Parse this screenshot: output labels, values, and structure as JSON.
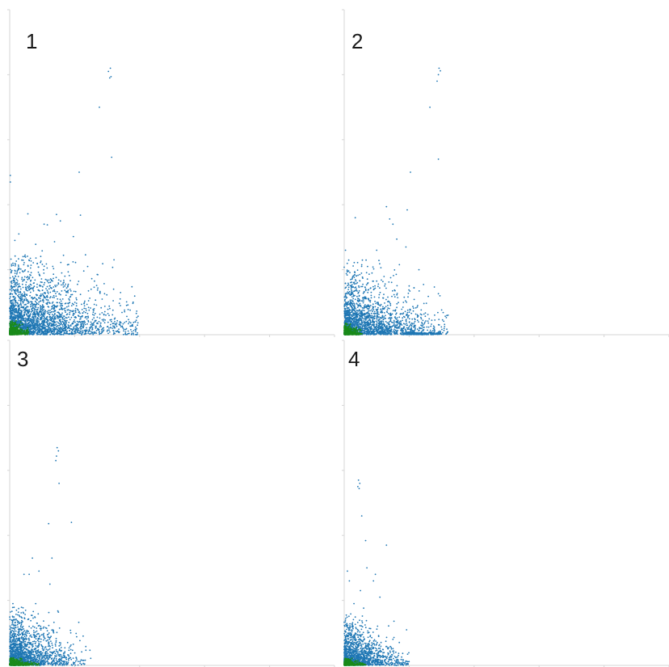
{
  "colors": {
    "blue": "#1f77b4",
    "green": "#1a8a1a",
    "axis": "#d6d6d6"
  },
  "chart_data": [
    {
      "type": "scatter",
      "panel_label": "1",
      "xlim": [
        0,
        5
      ],
      "ylim": [
        0,
        5
      ],
      "grid": false,
      "series": [
        {
          "color": "blue",
          "points": [
            [
              1.52,
              4.05
            ],
            [
              1.55,
              4.1
            ],
            [
              1.54,
              3.95
            ],
            [
              1.56,
              3.97
            ],
            [
              1.38,
              3.5
            ],
            [
              1.57,
              2.73
            ],
            [
              1.07,
              2.5
            ],
            [
              0.72,
              1.85
            ],
            [
              0.78,
              1.75
            ],
            [
              1.09,
              1.84
            ],
            [
              0.28,
              1.86
            ],
            [
              0.53,
              1.7
            ],
            [
              0.58,
              1.69
            ],
            [
              0.69,
              1.43
            ],
            [
              0.98,
              1.51
            ],
            [
              1.2,
              1.05
            ],
            [
              1.46,
              0.63
            ],
            [
              1.7,
              0.55
            ],
            [
              0.9,
              0.68
            ],
            [
              0.14,
              1.55
            ],
            [
              0.4,
              1.39
            ],
            [
              0.5,
              1.29
            ],
            [
              1.14,
              0.98
            ],
            [
              1.3,
              0.73
            ],
            [
              1.6,
              0.7
            ],
            [
              1.9,
              0.5
            ],
            [
              1.8,
              0.45
            ],
            [
              0.05,
              1.1
            ],
            [
              0.08,
              1.45
            ],
            [
              0.01,
              2.35
            ],
            [
              0.01,
              2.45
            ],
            [
              0.6,
              0.8
            ],
            [
              0.85,
              0.9
            ]
          ],
          "cloud": {
            "n": 2600,
            "x_scale": 0.62,
            "y_scale": 0.38,
            "x_max": 1.98,
            "y_max": 1.25,
            "seed": 11
          }
        },
        {
          "color": "green",
          "cloud": {
            "n": 650,
            "x_scale": 0.09,
            "y_scale": 0.06,
            "x_max": 0.3,
            "y_max": 0.22,
            "seed": 21
          }
        }
      ]
    },
    {
      "type": "scatter",
      "panel_label": "2",
      "xlim": [
        0,
        5
      ],
      "ylim": [
        0,
        5
      ],
      "grid": false,
      "series": [
        {
          "color": "blue",
          "points": [
            [
              1.46,
              4.1
            ],
            [
              1.48,
              4.06
            ],
            [
              1.45,
              4.0
            ],
            [
              1.43,
              3.9
            ],
            [
              1.32,
              3.5
            ],
            [
              1.45,
              2.7
            ],
            [
              1.02,
              2.5
            ],
            [
              0.65,
              1.97
            ],
            [
              0.7,
              1.78
            ],
            [
              0.97,
              1.92
            ],
            [
              0.75,
              1.7
            ],
            [
              0.81,
              1.47
            ],
            [
              0.95,
              1.35
            ],
            [
              1.15,
              1.0
            ],
            [
              1.45,
              0.63
            ],
            [
              1.6,
              0.3
            ],
            [
              1.5,
              0.38
            ],
            [
              0.17,
              1.8
            ],
            [
              0.5,
              1.3
            ],
            [
              0.36,
              1.05
            ],
            [
              1.0,
              0.75
            ],
            [
              0.02,
              1.3
            ],
            [
              0.1,
              0.85
            ]
          ],
          "cloud": {
            "n": 2000,
            "x_scale": 0.5,
            "y_scale": 0.3,
            "x_max": 1.6,
            "y_max": 1.2,
            "seed": 31
          },
          "floor": {
            "n": 220,
            "x_min": 0.9,
            "x_max": 1.5,
            "seed": 33
          }
        },
        {
          "color": "green",
          "cloud": {
            "n": 550,
            "x_scale": 0.08,
            "y_scale": 0.05,
            "x_max": 0.28,
            "y_max": 0.2,
            "seed": 41
          }
        }
      ]
    },
    {
      "type": "scatter",
      "panel_label": "3",
      "xlim": [
        0,
        5
      ],
      "ylim": [
        0,
        5
      ],
      "grid": false,
      "series": [
        {
          "color": "blue",
          "points": [
            [
              0.73,
              3.35
            ],
            [
              0.75,
              3.3
            ],
            [
              0.72,
              3.22
            ],
            [
              0.71,
              3.15
            ],
            [
              0.76,
              2.8
            ],
            [
              0.95,
              2.2
            ],
            [
              0.6,
              2.18
            ],
            [
              0.35,
              1.65
            ],
            [
              0.65,
              1.65
            ],
            [
              0.45,
              1.45
            ],
            [
              0.62,
              1.25
            ],
            [
              0.3,
              1.4
            ],
            [
              0.22,
              1.4
            ],
            [
              0.75,
              0.82
            ],
            [
              0.4,
              0.95
            ],
            [
              0.05,
              0.95
            ],
            [
              0.3,
              0.6
            ]
          ],
          "cloud": {
            "n": 1700,
            "x_scale": 0.33,
            "y_scale": 0.26,
            "x_max": 1.25,
            "y_max": 0.9,
            "seed": 51
          }
        },
        {
          "color": "green",
          "cloud": {
            "n": 450,
            "x_scale": 0.12,
            "y_scale": 0.035,
            "x_max": 0.45,
            "y_max": 0.12,
            "seed": 61
          }
        }
      ]
    },
    {
      "type": "scatter",
      "panel_label": "4",
      "xlim": [
        0,
        5
      ],
      "ylim": [
        0,
        5
      ],
      "grid": false,
      "series": [
        {
          "color": "blue",
          "points": [
            [
              0.22,
              2.85
            ],
            [
              0.24,
              2.8
            ],
            [
              0.21,
              2.75
            ],
            [
              0.23,
              2.72
            ],
            [
              0.27,
              2.3
            ],
            [
              0.33,
              1.92
            ],
            [
              0.65,
              1.85
            ],
            [
              0.35,
              1.5
            ],
            [
              0.05,
              1.45
            ],
            [
              0.48,
              1.4
            ],
            [
              0.25,
              1.15
            ],
            [
              0.45,
              1.3
            ],
            [
              0.55,
              1.05
            ],
            [
              0.3,
              0.88
            ],
            [
              0.75,
              0.4
            ],
            [
              0.08,
              1.3
            ],
            [
              0.15,
              0.95
            ]
          ],
          "cloud": {
            "n": 1500,
            "x_scale": 0.28,
            "y_scale": 0.22,
            "x_max": 1.0,
            "y_max": 0.8,
            "seed": 71
          }
        },
        {
          "color": "green",
          "cloud": {
            "n": 420,
            "x_scale": 0.09,
            "y_scale": 0.035,
            "x_max": 0.35,
            "y_max": 0.12,
            "seed": 81
          }
        }
      ]
    }
  ]
}
